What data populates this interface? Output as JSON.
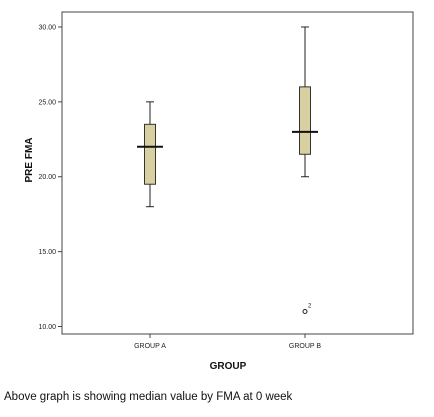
{
  "caption": "Above graph is showing median value by FMA at 0 week",
  "chart_data": {
    "type": "box",
    "xlabel": "GROUP",
    "ylabel": "PRE FMA",
    "ylim": [
      9.5,
      31
    ],
    "yticks": [
      "10.00",
      "15.00",
      "20.00",
      "25.00",
      "30.00"
    ],
    "ytick_values": [
      10,
      15,
      20,
      25,
      30
    ],
    "categories": [
      "GROUP A",
      "GROUP B"
    ],
    "grid": false,
    "box_color": "#d8d0a0",
    "boxes": [
      {
        "category": "GROUP A",
        "min": 18,
        "q1": 19.5,
        "median": 22,
        "q3": 23.5,
        "max": 25,
        "outliers": []
      },
      {
        "category": "GROUP B",
        "min": 20,
        "q1": 21.5,
        "median": 23,
        "q3": 26,
        "max": 30,
        "outliers": [
          {
            "value": 11,
            "label": "2"
          }
        ]
      }
    ]
  }
}
